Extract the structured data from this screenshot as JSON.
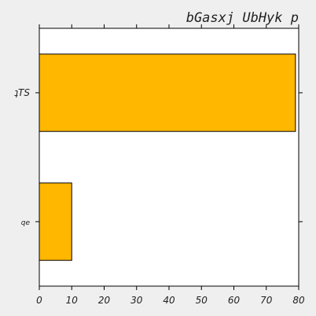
{
  "chart_data": {
    "type": "bar",
    "orientation": "horizontal",
    "title": "bGasxj UbHyk p",
    "xlabel": "",
    "ylabel": "",
    "categories": [
      "ʇTS",
      "qe"
    ],
    "values": [
      79,
      10
    ],
    "xlim": [
      0,
      80
    ],
    "xticks": [
      0,
      10,
      20,
      30,
      40,
      50,
      60,
      70,
      80
    ],
    "grid": false,
    "legend": "none",
    "colors": {
      "bar": "#ffb700",
      "bar_edge": "#000000",
      "plot_bg": "#ffffff",
      "figure_bg": "#efefef"
    }
  }
}
